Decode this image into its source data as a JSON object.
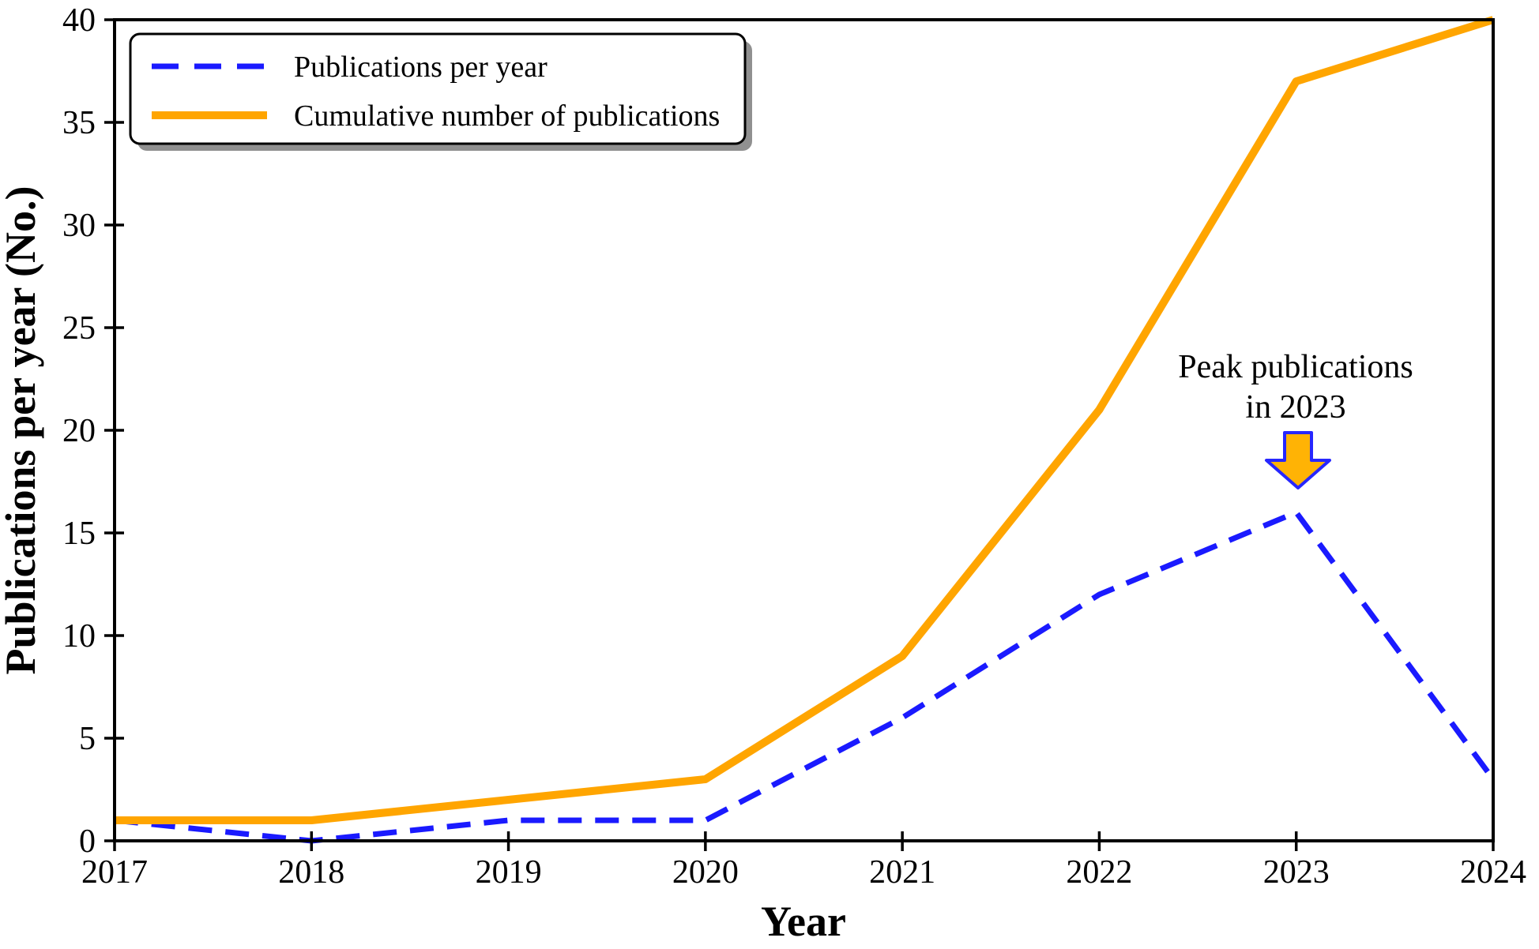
{
  "figure": {
    "xlabel": "Year",
    "ylabel": "Publications per year (No.)"
  },
  "legend": {
    "items": [
      {
        "label": "Publications per year"
      },
      {
        "label": "Cumulative number of publications"
      }
    ]
  },
  "annotation": {
    "line1": "Peak publications",
    "line2": "in 2023"
  },
  "colors": {
    "per_year_blue": "#1a1aff",
    "cumulative_orange": "#ffa500",
    "arrow_fill": "#ffb305",
    "arrow_stroke": "#2727ff",
    "axis_black": "#000000",
    "legend_shadow": "#909090"
  },
  "chart_data": {
    "type": "line",
    "x": [
      2017,
      2018,
      2019,
      2020,
      2021,
      2022,
      2023,
      2024
    ],
    "series": [
      {
        "name": "Publications per year",
        "values": [
          1,
          0,
          1,
          1,
          6,
          12,
          16,
          3
        ],
        "color": "#1a1aff",
        "style": "dashed",
        "width": 7
      },
      {
        "name": "Cumulative number of publications",
        "values": [
          1,
          1,
          2,
          3,
          9,
          21,
          37,
          40
        ],
        "color": "#ffa500",
        "style": "solid",
        "width": 10
      }
    ],
    "title": "",
    "xlabel": "Year",
    "ylabel": "Publications per year (No.)",
    "ylim": [
      0,
      40
    ],
    "ytick_step": 5,
    "xticks": [
      "2017",
      "2018",
      "2019",
      "2020",
      "2021",
      "2022",
      "2023",
      "2024"
    ],
    "yticks": [
      "0",
      "5",
      "10",
      "15",
      "20",
      "25",
      "30",
      "35",
      "40"
    ],
    "grid": false,
    "legend_position": "upper left",
    "annotation": {
      "text": "Peak publications in 2023",
      "target_x": 2023,
      "target_y": 16
    }
  }
}
